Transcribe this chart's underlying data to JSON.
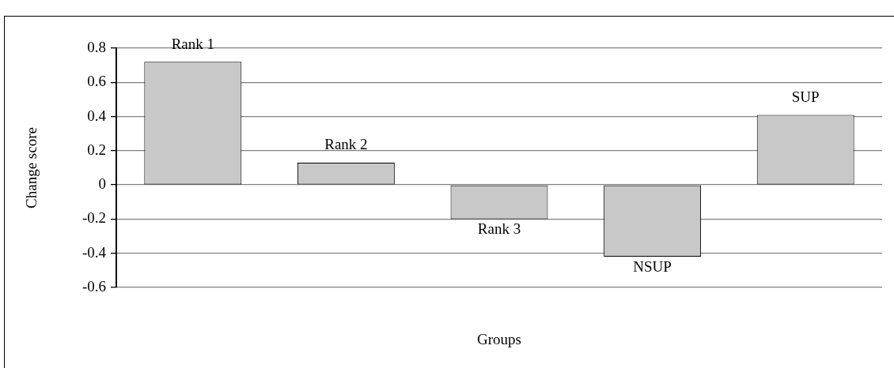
{
  "chart_data": {
    "type": "bar",
    "xlabel": "Groups",
    "ylabel": "Change score",
    "categories": [
      "Rank 1",
      "Rank 2",
      "Rank 3",
      "NSUP",
      "SUP"
    ],
    "values": [
      0.72,
      0.13,
      -0.2,
      -0.42,
      0.41
    ],
    "color": "#c8c8c8",
    "ylim": [
      -0.6,
      0.8
    ],
    "yticks": [
      -0.6,
      -0.4,
      -0.2,
      0,
      0.2,
      0.4,
      0.6,
      0.8
    ],
    "grid": "y",
    "legend": false
  }
}
